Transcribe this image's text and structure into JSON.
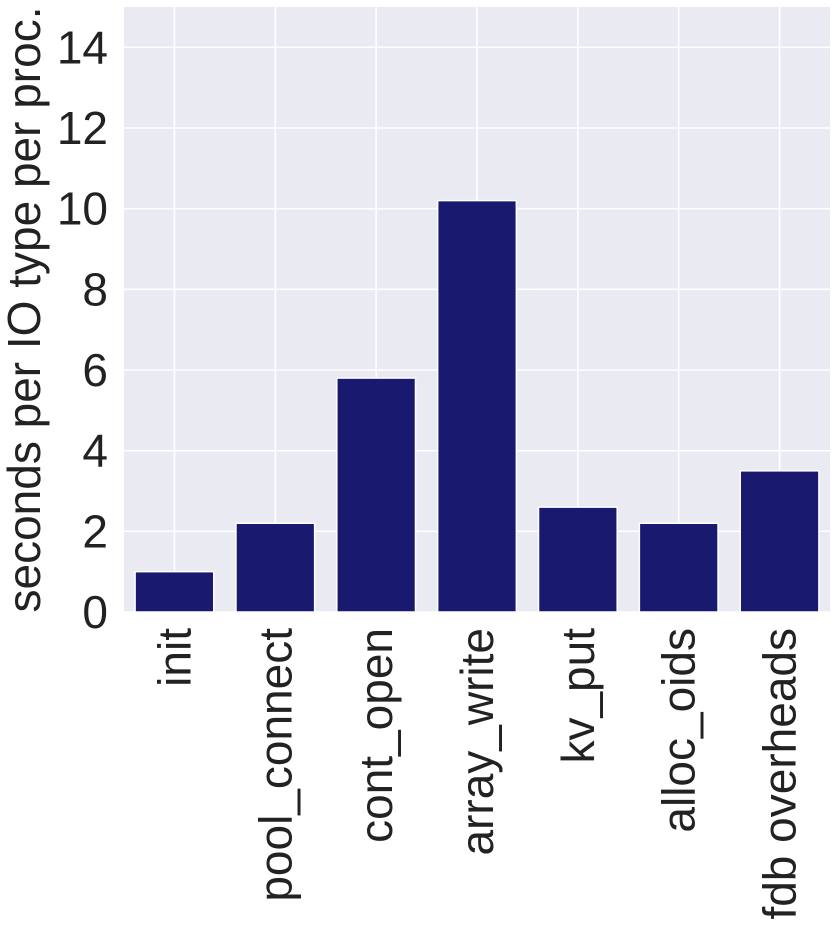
{
  "chart_data": {
    "type": "bar",
    "categories": [
      "init",
      "pool_connect",
      "cont_open",
      "array_write",
      "kv_put",
      "alloc_oids",
      "fdb overheads"
    ],
    "values": [
      1.0,
      2.2,
      5.8,
      10.2,
      2.6,
      2.2,
      3.5
    ],
    "title": "",
    "xlabel": "",
    "ylabel": "seconds per IO type per proc.",
    "ylim": [
      0,
      15
    ],
    "yticks": [
      0,
      2,
      4,
      6,
      8,
      10,
      12,
      14
    ],
    "grid": true,
    "legend": "none",
    "colors": {
      "bar": "#191970",
      "plot_background": "#eaeaf2",
      "grid": "#ffffff"
    }
  }
}
